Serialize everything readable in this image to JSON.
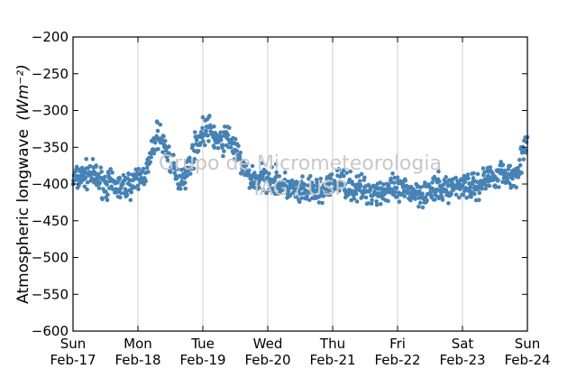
{
  "chart_data": {
    "type": "scatter",
    "ylabel": "Atmospheric longwave",
    "ylabel_unit": "(Wm⁻²)",
    "ylim": [
      -600,
      -200
    ],
    "yticks": [
      -200,
      -250,
      -300,
      -350,
      -400,
      -450,
      -500,
      -550,
      -600
    ],
    "xlim": [
      "2013-02-17",
      "2013-02-24"
    ],
    "xticks": [
      {
        "day": "Sun",
        "date": "Feb-17"
      },
      {
        "day": "Mon",
        "date": "Feb-18"
      },
      {
        "day": "Tue",
        "date": "Feb-19"
      },
      {
        "day": "Wed",
        "date": "Feb-20"
      },
      {
        "day": "Thu",
        "date": "Feb-21"
      },
      {
        "day": "Fri",
        "date": "Feb-22"
      },
      {
        "day": "Sat",
        "date": "Feb-23"
      },
      {
        "day": "Sun",
        "date": "Feb-24"
      }
    ],
    "grid": "vertical",
    "point_color": "#4682b4",
    "watermark": [
      "Grupo de Micrometeorologia",
      "IAG / USP"
    ],
    "series_profile": {
      "x_days": [
        0.0,
        0.25,
        0.5,
        0.75,
        1.0,
        1.15,
        1.3,
        1.45,
        1.6,
        1.75,
        1.9,
        2.0,
        2.1,
        2.25,
        2.4,
        2.55,
        2.7,
        2.85,
        3.0,
        3.1,
        3.3,
        3.5,
        3.7,
        3.9,
        4.1,
        4.3,
        4.5,
        4.7,
        4.9,
        5.0,
        5.2,
        5.4,
        5.6,
        5.8,
        6.0,
        6.2,
        6.4,
        6.6,
        6.8,
        6.95,
        7.0
      ],
      "y": [
        -395,
        -385,
        -400,
        -405,
        -395,
        -380,
        -330,
        -355,
        -395,
        -385,
        -345,
        -330,
        -325,
        -345,
        -335,
        -365,
        -390,
        -395,
        -390,
        -395,
        -405,
        -412,
        -410,
        -408,
        -395,
        -405,
        -408,
        -410,
        -408,
        -410,
        -410,
        -412,
        -408,
        -405,
        -400,
        -405,
        -390,
        -385,
        -390,
        -355,
        -350
      ]
    },
    "point_spread": 9,
    "point_count": 1100
  }
}
